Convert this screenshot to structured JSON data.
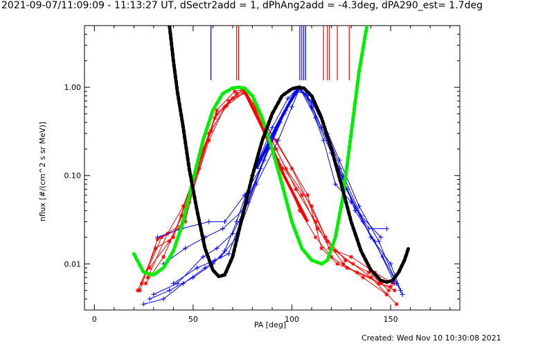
{
  "footer": {
    "created": "Created: Wed Nov 10 10:30:08 2021"
  },
  "colors": {
    "series_red": "#ff0000",
    "series_blue": "#0000ff",
    "fit_green": "#00ee00",
    "fit_black": "#000000",
    "axis": "#000000"
  },
  "chart_data": {
    "type": "line",
    "title": "2021-09-07/11:09:09 - 11:13:27 UT, dSectr2add = 1, dPhAng2add = -4.3deg, dPA290_est=  1.7deg",
    "xlabel": "PA [deg]",
    "ylabel": "nflux [#/(cm^2 s sr MeV)]",
    "xlim": [
      -5,
      185
    ],
    "ylim": [
      0.003,
      5
    ],
    "yscale": "log",
    "x_ticks": [
      0,
      50,
      100,
      150
    ],
    "y_ticks": [
      {
        "value": 0.01,
        "label": "0.01"
      },
      {
        "value": 0.1,
        "label": "0.10"
      },
      {
        "value": 1.0,
        "label": "1.00"
      }
    ],
    "grid": false,
    "vertical_markers": [
      {
        "color": "red",
        "x": [
          72,
          73,
          116,
          118,
          119,
          123,
          129
        ]
      },
      {
        "color": "blue",
        "x": [
          59,
          104,
          105,
          106,
          107
        ]
      }
    ],
    "series": [
      {
        "color": "red",
        "traces": [
          {
            "x": [
              28,
              38,
              48,
              58,
              66,
              75,
              92,
              108,
              115,
              123,
              133,
              145,
              152
            ],
            "y": [
              0.009,
              0.018,
              0.05,
              0.25,
              0.6,
              0.95,
              0.25,
              0.06,
              0.015,
              0.01,
              0.008,
              0.006,
              0.005
            ]
          },
          {
            "x": [
              26,
              35,
              44,
              53,
              61,
              70,
              76,
              85,
              95,
              104,
              112,
              120,
              128,
              140,
              153
            ],
            "y": [
              0.006,
              0.012,
              0.035,
              0.12,
              0.45,
              0.75,
              0.9,
              0.4,
              0.12,
              0.04,
              0.02,
              0.012,
              0.009,
              0.007,
              0.0035
            ]
          },
          {
            "x": [
              22,
              31,
              40,
              50,
              58,
              67,
              76,
              82,
              92,
              102,
              112,
              119,
              130,
              142,
              151
            ],
            "y": [
              0.005,
              0.015,
              0.02,
              0.09,
              0.3,
              0.62,
              0.88,
              0.6,
              0.2,
              0.07,
              0.03,
              0.015,
              0.012,
              0.008,
              0.006
            ]
          },
          {
            "x": [
              24,
              34,
              46,
              55,
              62,
              72,
              76,
              87,
              97,
              110,
              118,
              126,
              136,
              148
            ],
            "y": [
              0.006,
              0.02,
              0.03,
              0.2,
              0.5,
              0.85,
              0.92,
              0.33,
              0.12,
              0.045,
              0.018,
              0.01,
              0.007,
              0.0045
            ]
          },
          {
            "x": [
              27,
              37,
              45,
              59,
              68,
              76,
              93,
              105,
              113,
              122,
              131,
              144,
              150
            ],
            "y": [
              0.007,
              0.022,
              0.045,
              0.32,
              0.7,
              0.86,
              0.15,
              0.06,
              0.025,
              0.014,
              0.01,
              0.006,
              0.0055
            ]
          },
          {
            "x": [
              23,
              32,
              43,
              52,
              62,
              71,
              76,
              100,
              117,
              127,
              139,
              149
            ],
            "y": [
              0.005,
              0.019,
              0.025,
              0.11,
              0.55,
              0.9,
              0.95,
              0.12,
              0.02,
              0.011,
              0.008,
              0.005
            ]
          }
        ]
      },
      {
        "color": "blue",
        "traces": [
          {
            "x": [
              28,
              38,
              50,
              60,
              66,
              72,
              80,
              90,
              98,
              104,
              110,
              118,
              125,
              136,
              146,
              156
            ],
            "y": [
              0.004,
              0.005,
              0.007,
              0.01,
              0.014,
              0.03,
              0.1,
              0.35,
              0.75,
              1.0,
              0.6,
              0.25,
              0.09,
              0.03,
              0.012,
              0.0045
            ]
          },
          {
            "x": [
              25,
              35,
              45,
              56,
              64,
              72,
              82,
              93,
              100,
              104,
              112,
              120,
              128,
              140,
              150,
              155
            ],
            "y": [
              0.0035,
              0.004,
              0.006,
              0.009,
              0.012,
              0.02,
              0.08,
              0.25,
              0.6,
              0.98,
              0.45,
              0.18,
              0.07,
              0.02,
              0.01,
              0.005
            ]
          },
          {
            "x": [
              30,
              42,
              55,
              62,
              70,
              78,
              88,
              96,
              104,
              108,
              115,
              124,
              132,
              142,
              152
            ],
            "y": [
              0.0045,
              0.006,
              0.012,
              0.015,
              0.022,
              0.05,
              0.2,
              0.5,
              0.97,
              0.8,
              0.35,
              0.12,
              0.04,
              0.018,
              0.006
            ]
          },
          {
            "x": [
              35,
              46,
              56,
              65,
              75,
              86,
              97,
              103,
              110,
              118,
              126,
              135,
              145
            ],
            "y": [
              0.01,
              0.015,
              0.02,
              0.025,
              0.04,
              0.15,
              0.55,
              0.96,
              0.7,
              0.3,
              0.1,
              0.035,
              0.02
            ]
          },
          {
            "x": [
              32,
              44,
              58,
              66,
              76,
              84,
              94,
              102,
              107,
              116,
              122,
              130,
              139,
              148
            ],
            "y": [
              0.02,
              0.025,
              0.03,
              0.03,
              0.06,
              0.12,
              0.4,
              0.9,
              0.85,
              0.25,
              0.08,
              0.05,
              0.025,
              0.025
            ]
          },
          {
            "x": [
              40,
              52,
              61,
              68,
              74,
              90,
              101,
              104,
              114,
              124,
              134,
              144,
              153
            ],
            "y": [
              0.006,
              0.009,
              0.011,
              0.013,
              0.03,
              0.28,
              0.85,
              1.0,
              0.5,
              0.15,
              0.045,
              0.018,
              0.006
            ]
          }
        ]
      }
    ],
    "fits": [
      {
        "color": "green",
        "x": [
          20,
          25,
          30,
          35,
          40,
          45,
          50,
          55,
          60,
          65,
          70,
          73,
          76,
          80,
          85,
          90,
          95,
          100,
          105,
          110,
          115,
          118,
          122,
          126,
          130,
          134,
          138
        ],
        "y": [
          0.013,
          0.008,
          0.0075,
          0.009,
          0.014,
          0.03,
          0.09,
          0.25,
          0.55,
          0.85,
          0.98,
          1.0,
          0.98,
          0.8,
          0.45,
          0.2,
          0.08,
          0.03,
          0.015,
          0.011,
          0.01,
          0.011,
          0.02,
          0.06,
          0.3,
          1.5,
          5.0
        ]
      },
      {
        "color": "black",
        "x": [
          38,
          40,
          42,
          45,
          48,
          52,
          56,
          60,
          63,
          66,
          70,
          75,
          80,
          85,
          90,
          95,
          100,
          103,
          106,
          110,
          115,
          120,
          125,
          130,
          135,
          140,
          145,
          148,
          151,
          154,
          157,
          159
        ],
        "y": [
          5.0,
          2.0,
          0.9,
          0.35,
          0.12,
          0.04,
          0.015,
          0.0085,
          0.0072,
          0.0075,
          0.012,
          0.035,
          0.1,
          0.25,
          0.5,
          0.8,
          0.96,
          1.0,
          0.98,
          0.8,
          0.45,
          0.2,
          0.08,
          0.03,
          0.014,
          0.0085,
          0.0065,
          0.0062,
          0.0065,
          0.008,
          0.011,
          0.015
        ]
      }
    ]
  }
}
